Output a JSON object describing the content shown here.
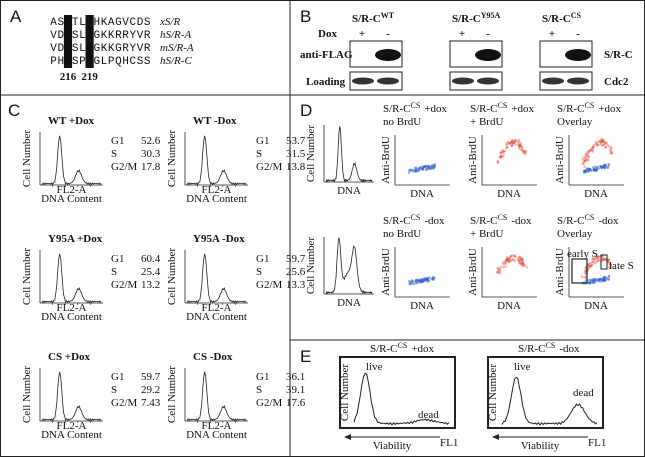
{
  "panel_a": {
    "label": "A",
    "rows": [
      {
        "sequence": "ASCTLCHKAGVCDS",
        "species": "xS/R"
      },
      {
        "sequence": "VDCSLCGKKRRYVR",
        "species": "hS/R-A"
      },
      {
        "sequence": "VDCSLCGKKGRYVR",
        "species": "mS/R-A"
      },
      {
        "sequence": "PHCSPCGLPQHCSS",
        "species": "hS/R-C"
      }
    ],
    "positions": [
      "216",
      "219"
    ]
  },
  "panel_b": {
    "label": "B",
    "dox": "Dox",
    "plus": "+",
    "minus": "-",
    "constructs": [
      {
        "name": "S/R-C",
        "sup": "WT"
      },
      {
        "name": "S/R-C",
        "sup": "Y95A"
      },
      {
        "name": "S/R-C",
        "sup": "CS"
      }
    ],
    "rows": [
      "anti-FLAG",
      "Loading"
    ],
    "right_labels": [
      "S/R-C",
      "Cdc2"
    ]
  },
  "panel_c": {
    "label": "C",
    "y_label": "Cell Number",
    "x_label": "DNA Content",
    "axis_tick": "FL2-A",
    "phases": [
      "G1",
      "S",
      "G2/M"
    ],
    "plots": [
      {
        "title": "WT +Dox",
        "values": [
          52.6,
          30.3,
          17.8
        ]
      },
      {
        "title": "WT -Dox",
        "values": [
          53.7,
          31.5,
          13.8
        ]
      },
      {
        "title": "Y95A +Dox",
        "values": [
          60.4,
          25.4,
          13.2
        ]
      },
      {
        "title": "Y95A -Dox",
        "values": [
          59.7,
          25.6,
          13.3
        ]
      },
      {
        "title": "CS +Dox",
        "values": [
          59.7,
          29.2,
          7.43
        ]
      },
      {
        "title": "CS -Dox",
        "values": [
          36.1,
          39.1,
          17.6
        ]
      }
    ]
  },
  "panel_d": {
    "label": "D",
    "hist_y": "Cell Number",
    "hist_x": "DNA",
    "scatter_y": "Anti-BrdU",
    "scatter_x": "DNA",
    "name": "S/R-C",
    "sup": "CS",
    "rows": [
      {
        "condition": "+dox",
        "panels": [
          "no BrdU",
          "+ BrdU",
          "Overlay"
        ]
      },
      {
        "condition": "-dox",
        "panels": [
          "no BrdU",
          "+ BrdU",
          "Overlay"
        ]
      }
    ],
    "gates": [
      "early S",
      "late S"
    ]
  },
  "panel_e": {
    "label": "E",
    "name": "S/R-C",
    "sup": "CS",
    "conditions": [
      "+dox",
      "-dox"
    ],
    "y_label": "Cell Number",
    "x_label": "Viability",
    "x_channel": "FL1",
    "peaks": [
      "live",
      "dead"
    ]
  }
}
